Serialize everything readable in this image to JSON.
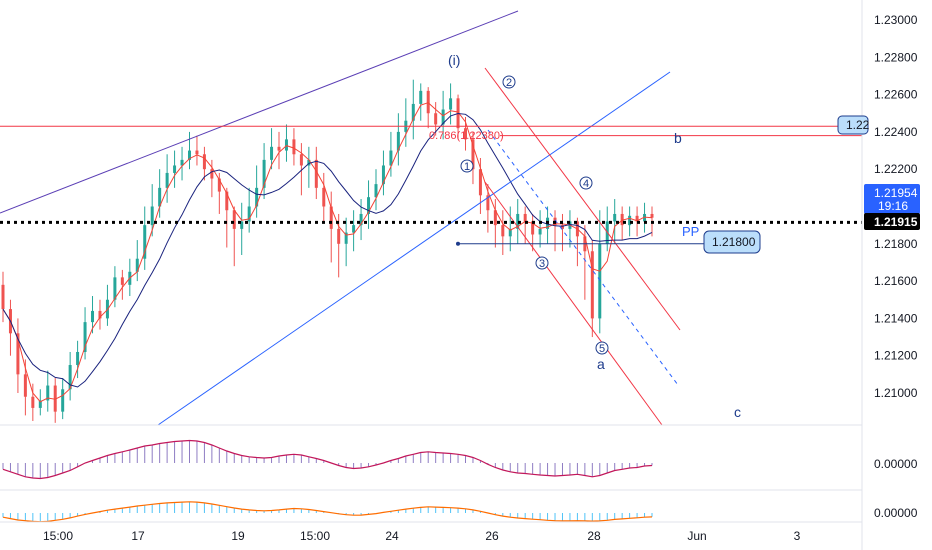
{
  "chart_data": {
    "type": "candlestick",
    "x_axis": {
      "tick_labels": [
        "15:00",
        "17",
        "19",
        "15:00",
        "24",
        "26",
        "28",
        "Jun",
        "3"
      ]
    },
    "y_axis": {
      "range": [
        1.208,
        1.231
      ],
      "tick_labels": [
        "1.23000",
        "1.22800",
        "1.22600",
        "1.22400",
        "1.22200",
        "1.22000",
        "1.21800",
        "1.21600",
        "1.21400",
        "1.21200",
        "1.21000"
      ],
      "tick_values": [
        1.23,
        1.228,
        1.226,
        1.224,
        1.222,
        1.22,
        1.218,
        1.216,
        1.214,
        1.212,
        1.21
      ]
    },
    "price_labels": {
      "current_price": "1.21954",
      "countdown": "19:16",
      "dotted_line_price": "1.21915",
      "dotted_line_value": 1.21915,
      "level_box_text": "1.22",
      "level_value": 1.2243,
      "pp_label": "PP",
      "pp_value_text": "1.21800",
      "pp_value": 1.218,
      "fib_label": "0.786(1.22380)",
      "fib_value": 1.2238
    },
    "wave_labels": {
      "main": "(i)",
      "b": "b",
      "a": "a",
      "c": "c",
      "circled": [
        "1",
        "2",
        "3",
        "4",
        "5"
      ]
    },
    "series": [
      {
        "type": "candles",
        "open": [
          1.2158,
          1.2145,
          1.2132,
          1.211,
          1.2098,
          1.2092,
          1.2096,
          1.2104,
          1.209,
          1.2102,
          1.2115,
          1.2122,
          1.2138,
          1.2144,
          1.214,
          1.215,
          1.2162,
          1.2158,
          1.2165,
          1.2172,
          1.219,
          1.22,
          1.221,
          1.2218,
          1.2222,
          1.2225,
          1.223,
          1.2228,
          1.222,
          1.2215,
          1.2208,
          1.2198,
          1.2188,
          1.2192,
          1.22,
          1.221,
          1.2225,
          1.2232,
          1.223,
          1.2236,
          1.2228,
          1.2222,
          1.2225,
          1.221,
          1.22,
          1.2188,
          1.218,
          1.2186,
          1.219,
          1.2196,
          1.2205,
          1.2212,
          1.2222,
          1.223,
          1.224,
          1.2246,
          1.2255,
          1.2262,
          1.225,
          1.2244,
          1.2252,
          1.2258,
          1.2242,
          1.2236,
          1.222,
          1.2206,
          1.2198,
          1.219,
          1.2184,
          1.2188,
          1.2196,
          1.2192,
          1.2185,
          1.2188,
          1.2194,
          1.219,
          1.2188,
          1.2192,
          1.2184,
          1.2176,
          1.214,
          1.218,
          1.2192,
          1.2196,
          1.219,
          1.2195,
          1.2192,
          1.2196
        ],
        "close": [
          1.2145,
          1.2132,
          1.211,
          1.2098,
          1.2092,
          1.2096,
          1.2104,
          1.209,
          1.2102,
          1.2115,
          1.2122,
          1.2138,
          1.2144,
          1.214,
          1.215,
          1.2162,
          1.2158,
          1.2165,
          1.2172,
          1.219,
          1.22,
          1.221,
          1.2218,
          1.2222,
          1.2225,
          1.223,
          1.2228,
          1.222,
          1.2215,
          1.2208,
          1.2198,
          1.2188,
          1.2192,
          1.22,
          1.221,
          1.2225,
          1.2232,
          1.223,
          1.2236,
          1.2228,
          1.2222,
          1.2225,
          1.221,
          1.22,
          1.2188,
          1.218,
          1.2186,
          1.219,
          1.2196,
          1.2205,
          1.2212,
          1.2222,
          1.223,
          1.224,
          1.2246,
          1.2255,
          1.2262,
          1.225,
          1.2244,
          1.2252,
          1.2258,
          1.2242,
          1.2236,
          1.222,
          1.2206,
          1.2198,
          1.219,
          1.2184,
          1.2188,
          1.2196,
          1.2192,
          1.2185,
          1.2188,
          1.2194,
          1.219,
          1.2188,
          1.2192,
          1.2184,
          1.2176,
          1.214,
          1.218,
          1.2192,
          1.2196,
          1.219,
          1.2195,
          1.2192,
          1.2196,
          1.2194
        ],
        "high": [
          1.2165,
          1.215,
          1.214,
          1.2118,
          1.2105,
          1.2102,
          1.2112,
          1.2108,
          1.2108,
          1.2122,
          1.2128,
          1.2146,
          1.2152,
          1.215,
          1.2158,
          1.2168,
          1.2166,
          1.2172,
          1.2182,
          1.22,
          1.2212,
          1.222,
          1.2228,
          1.223,
          1.2232,
          1.224,
          1.2238,
          1.2232,
          1.2225,
          1.2218,
          1.221,
          1.22,
          1.2202,
          1.221,
          1.2222,
          1.2234,
          1.2242,
          1.224,
          1.2244,
          1.2242,
          1.2234,
          1.2232,
          1.2232,
          1.2218,
          1.2208,
          1.2196,
          1.2194,
          1.2198,
          1.2204,
          1.2214,
          1.222,
          1.223,
          1.224,
          1.225,
          1.2258,
          1.2268,
          1.2266,
          1.2264,
          1.2256,
          1.2262,
          1.2266,
          1.226,
          1.2248,
          1.224,
          1.2226,
          1.2212,
          1.2204,
          1.2198,
          1.22,
          1.2204,
          1.22,
          1.2196,
          1.2198,
          1.22,
          1.2198,
          1.2196,
          1.2198,
          1.2194,
          1.219,
          1.2182,
          1.2198,
          1.22,
          1.2204,
          1.22,
          1.22,
          1.22,
          1.2202,
          1.22
        ],
        "low": [
          1.2138,
          1.212,
          1.21,
          1.2088,
          1.2085,
          1.2088,
          1.209,
          1.2084,
          1.2086,
          1.2096,
          1.2108,
          1.2118,
          1.2132,
          1.2134,
          1.2136,
          1.2146,
          1.215,
          1.2152,
          1.216,
          1.2166,
          1.2184,
          1.2194,
          1.2202,
          1.221,
          1.2214,
          1.222,
          1.2222,
          1.2214,
          1.2205,
          1.2196,
          1.2178,
          1.2168,
          1.2174,
          1.2186,
          1.2194,
          1.2204,
          1.222,
          1.222,
          1.2224,
          1.2222,
          1.2206,
          1.221,
          1.2204,
          1.2192,
          1.217,
          1.2162,
          1.2168,
          1.2176,
          1.2182,
          1.2188,
          1.2198,
          1.2206,
          1.2216,
          1.2222,
          1.2232,
          1.2236,
          1.2246,
          1.2242,
          1.2238,
          1.2236,
          1.2244,
          1.2236,
          1.223,
          1.2212,
          1.2196,
          1.2186,
          1.2178,
          1.2174,
          1.2176,
          1.218,
          1.218,
          1.2176,
          1.2178,
          1.218,
          1.2176,
          1.2176,
          1.2178,
          1.2168,
          1.215,
          1.213,
          1.2132,
          1.2176,
          1.218,
          1.2182,
          1.2184,
          1.2184,
          1.2186,
          1.2184
        ]
      }
    ],
    "osc1_values": [
      -0.25,
      -0.35,
      -0.45,
      -0.55,
      -0.6,
      -0.62,
      -0.58,
      -0.5,
      -0.4,
      -0.3,
      -0.15,
      0.0,
      0.1,
      0.2,
      0.3,
      0.38,
      0.45,
      0.52,
      0.6,
      0.68,
      0.72,
      0.78,
      0.82,
      0.86,
      0.88,
      0.9,
      0.88,
      0.82,
      0.72,
      0.6,
      0.48,
      0.38,
      0.3,
      0.25,
      0.22,
      0.2,
      0.22,
      0.28,
      0.32,
      0.35,
      0.32,
      0.25,
      0.18,
      0.1,
      0.0,
      -0.1,
      -0.18,
      -0.22,
      -0.2,
      -0.15,
      -0.08,
      0.0,
      0.1,
      0.18,
      0.28,
      0.35,
      0.42,
      0.45,
      0.42,
      0.4,
      0.38,
      0.35,
      0.3,
      0.22,
      0.1,
      -0.05,
      -0.18,
      -0.28,
      -0.35,
      -0.4,
      -0.42,
      -0.45,
      -0.48,
      -0.5,
      -0.52,
      -0.5,
      -0.48,
      -0.45,
      -0.5,
      -0.55,
      -0.5,
      -0.4,
      -0.3,
      -0.25,
      -0.2,
      -0.18,
      -0.12,
      -0.1
    ],
    "osc2_values": [
      -0.3,
      -0.4,
      -0.5,
      -0.55,
      -0.6,
      -0.62,
      -0.6,
      -0.52,
      -0.45,
      -0.35,
      -0.22,
      -0.1,
      0.0,
      0.1,
      0.2,
      0.28,
      0.35,
      0.42,
      0.5,
      0.56,
      0.62,
      0.68,
      0.72,
      0.75,
      0.78,
      0.8,
      0.78,
      0.72,
      0.64,
      0.55,
      0.45,
      0.36,
      0.28,
      0.22,
      0.18,
      0.16,
      0.18,
      0.22,
      0.28,
      0.32,
      0.3,
      0.25,
      0.18,
      0.1,
      0.02,
      -0.06,
      -0.12,
      -0.16,
      -0.15,
      -0.1,
      -0.04,
      0.04,
      0.12,
      0.2,
      0.28,
      0.34,
      0.4,
      0.44,
      0.42,
      0.4,
      0.38,
      0.35,
      0.3,
      0.22,
      0.12,
      0.0,
      -0.12,
      -0.22,
      -0.3,
      -0.36,
      -0.4,
      -0.44,
      -0.48,
      -0.52,
      -0.55,
      -0.56,
      -0.56,
      -0.55,
      -0.56,
      -0.58,
      -0.56,
      -0.52,
      -0.46,
      -0.42,
      -0.38,
      -0.34,
      -0.3,
      -0.28
    ],
    "osc_zero_label": "0.00000"
  },
  "colors": {
    "bull": "#26a69a",
    "bear": "#ef5350",
    "ma_fast": "#f44336",
    "ma_slow": "#1a237e",
    "wave_blue": "#1e3c8c",
    "channel_red": "#f23645",
    "trend_purple": "#5b3fb5",
    "trend_blue": "#2962ff",
    "osc1": "#c2185b",
    "osc1_hist": "#8e7cc3",
    "osc2": "#ff6d00",
    "osc2_hist": "#4fc3f7",
    "current_tag": "#2962ff",
    "box_fill": "#bbdefb"
  }
}
